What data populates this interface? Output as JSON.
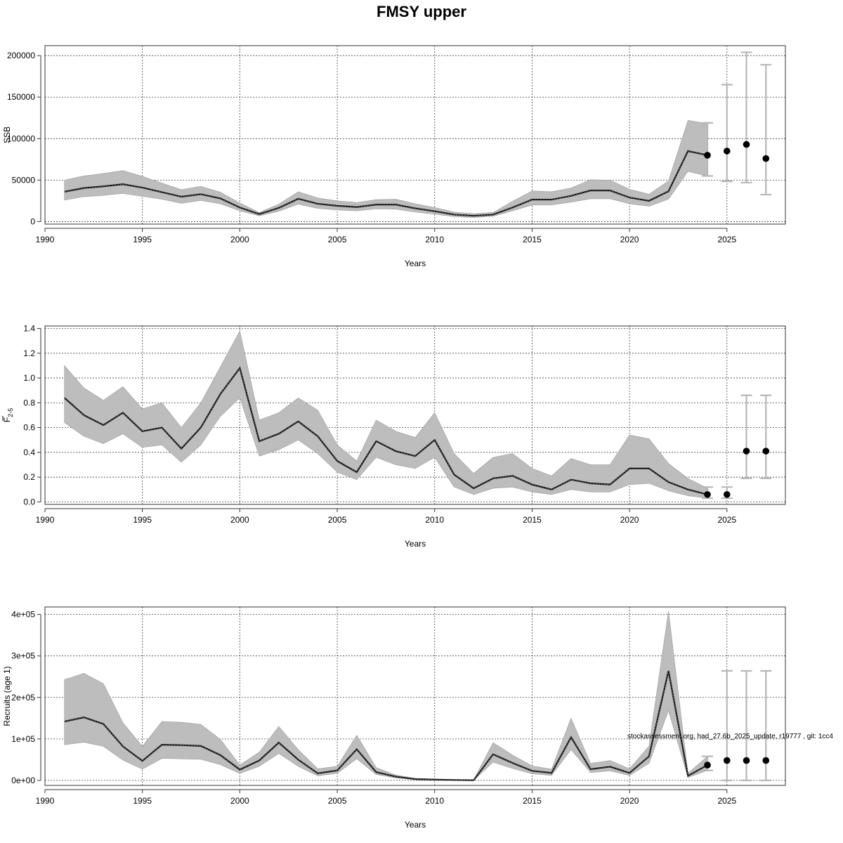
{
  "figure": {
    "title": "FMSY upper",
    "watermark": "stockassessment.org, had_27.6b_2025_update, r19777 , git: 1cc4"
  },
  "colors": {
    "band": "#bdbdbd",
    "line": "#111111",
    "errbar": "#b8b8b8",
    "point": "#000000"
  },
  "chart_data": [
    {
      "type": "line",
      "ylabel": "SSB",
      "xlabel": "Years",
      "xlim": [
        1990,
        2028
      ],
      "ylim": [
        -3000,
        212000
      ],
      "xticks": [
        1990,
        1995,
        2000,
        2005,
        2010,
        2015,
        2020,
        2025
      ],
      "yticks": [
        0,
        50000,
        100000,
        150000,
        200000
      ],
      "ytick_labels": [
        "0",
        "50000",
        "100000",
        "150000",
        "200000"
      ],
      "grid": true,
      "x": [
        1991,
        1992,
        1993,
        1994,
        1995,
        1996,
        1997,
        1998,
        1999,
        2000,
        2001,
        2002,
        2003,
        2004,
        2005,
        2006,
        2007,
        2008,
        2009,
        2010,
        2011,
        2012,
        2013,
        2014,
        2015,
        2016,
        2017,
        2018,
        2019,
        2020,
        2021,
        2022,
        2023,
        2024
      ],
      "series": [
        {
          "values": [
            36000,
            40500,
            42500,
            45000,
            41000,
            35500,
            30000,
            33000,
            28000,
            17000,
            9000,
            16500,
            27500,
            21500,
            19000,
            17500,
            20500,
            20500,
            16000,
            12500,
            8500,
            7000,
            8500,
            17000,
            26500,
            26500,
            31000,
            37500,
            37500,
            29000,
            25000,
            36500,
            85000,
            80000
          ],
          "lower": [
            26000,
            30000,
            31500,
            34000,
            30500,
            27000,
            22000,
            25500,
            21500,
            13000,
            7000,
            12500,
            21000,
            16000,
            14000,
            13000,
            15500,
            15000,
            11500,
            9000,
            6000,
            5000,
            6500,
            13000,
            20000,
            20000,
            23500,
            27500,
            27500,
            21500,
            18500,
            27000,
            60500,
            55000
          ],
          "upper": [
            50000,
            55000,
            58000,
            61500,
            54500,
            46500,
            38500,
            42500,
            35500,
            22500,
            11000,
            21000,
            36000,
            28500,
            25000,
            23000,
            26500,
            27000,
            21500,
            17000,
            11500,
            9500,
            11000,
            24500,
            37000,
            36000,
            40500,
            50500,
            50000,
            39000,
            33000,
            49000,
            122000,
            118000
          ]
        }
      ],
      "projection": [
        {
          "x": 2024,
          "value": 80000,
          "lower": 55000,
          "upper": 119000
        },
        {
          "x": 2025,
          "value": 85000,
          "lower": 48500,
          "upper": 165000
        },
        {
          "x": 2026,
          "value": 93000,
          "lower": 47000,
          "upper": 204000
        },
        {
          "x": 2027,
          "value": 76000,
          "lower": 32500,
          "upper": 189000
        }
      ]
    },
    {
      "type": "line",
      "ylabel": "F",
      "ylabel_sub": "2-5",
      "xlabel": "Years",
      "xlim": [
        1990,
        2028
      ],
      "ylim": [
        -0.02,
        1.42
      ],
      "xticks": [
        1990,
        1995,
        2000,
        2005,
        2010,
        2015,
        2020,
        2025
      ],
      "yticks": [
        0.0,
        0.2,
        0.4,
        0.6,
        0.8,
        1.0,
        1.2,
        1.4
      ],
      "ytick_labels": [
        "0.0",
        "0.2",
        "0.4",
        "0.6",
        "0.8",
        "1.0",
        "1.2",
        "1.4"
      ],
      "grid": true,
      "x": [
        1991,
        1992,
        1993,
        1994,
        1995,
        1996,
        1997,
        1998,
        1999,
        2000,
        2001,
        2002,
        2003,
        2004,
        2005,
        2006,
        2007,
        2008,
        2009,
        2010,
        2011,
        2012,
        2013,
        2014,
        2015,
        2016,
        2017,
        2018,
        2019,
        2020,
        2021,
        2022,
        2023,
        2024
      ],
      "series": [
        {
          "values": [
            0.84,
            0.7,
            0.62,
            0.72,
            0.57,
            0.6,
            0.43,
            0.6,
            0.87,
            1.08,
            0.49,
            0.55,
            0.65,
            0.53,
            0.33,
            0.24,
            0.49,
            0.41,
            0.37,
            0.5,
            0.22,
            0.11,
            0.19,
            0.21,
            0.14,
            0.1,
            0.18,
            0.15,
            0.14,
            0.27,
            0.27,
            0.16,
            0.1,
            0.06
          ],
          "lower": [
            0.64,
            0.53,
            0.47,
            0.55,
            0.44,
            0.46,
            0.32,
            0.46,
            0.69,
            0.84,
            0.37,
            0.42,
            0.5,
            0.39,
            0.24,
            0.18,
            0.36,
            0.3,
            0.27,
            0.36,
            0.12,
            0.06,
            0.11,
            0.12,
            0.08,
            0.06,
            0.1,
            0.08,
            0.08,
            0.14,
            0.15,
            0.09,
            0.05,
            0.03
          ],
          "upper": [
            1.1,
            0.92,
            0.82,
            0.93,
            0.75,
            0.8,
            0.6,
            0.8,
            1.09,
            1.38,
            0.66,
            0.72,
            0.84,
            0.74,
            0.46,
            0.33,
            0.66,
            0.57,
            0.52,
            0.72,
            0.39,
            0.23,
            0.36,
            0.39,
            0.27,
            0.21,
            0.35,
            0.3,
            0.3,
            0.54,
            0.51,
            0.31,
            0.19,
            0.11
          ]
        }
      ],
      "projection": [
        {
          "x": 2024,
          "value": 0.06,
          "lower": 0.03,
          "upper": 0.12
        },
        {
          "x": 2025,
          "value": 0.06,
          "lower": 0.03,
          "upper": 0.12
        },
        {
          "x": 2026,
          "value": 0.41,
          "lower": 0.19,
          "upper": 0.86
        },
        {
          "x": 2027,
          "value": 0.41,
          "lower": 0.19,
          "upper": 0.86
        }
      ]
    },
    {
      "type": "line",
      "ylabel": "Recruits (age 1)",
      "xlabel": "Years",
      "xlim": [
        1990,
        2028
      ],
      "ylim": [
        -12000,
        418000
      ],
      "xticks": [
        1990,
        1995,
        2000,
        2005,
        2010,
        2015,
        2020,
        2025
      ],
      "yticks": [
        0,
        100000,
        200000,
        300000,
        400000
      ],
      "ytick_labels": [
        "0e+00",
        "1e+05",
        "2e+05",
        "3e+05",
        "4e+05"
      ],
      "grid": true,
      "x": [
        1991,
        1992,
        1993,
        1994,
        1995,
        1996,
        1997,
        1998,
        1999,
        2000,
        2001,
        2002,
        2003,
        2004,
        2005,
        2006,
        2007,
        2008,
        2009,
        2010,
        2011,
        2012,
        2013,
        2014,
        2015,
        2016,
        2017,
        2018,
        2019,
        2020,
        2021,
        2022,
        2023,
        2024
      ],
      "series": [
        {
          "values": [
            142000,
            152000,
            136000,
            82000,
            47000,
            86000,
            85000,
            83000,
            61000,
            26000,
            48000,
            91000,
            50000,
            17000,
            24000,
            75000,
            20000,
            9000,
            3000,
            2000,
            1000,
            500,
            63000,
            42000,
            23000,
            18000,
            104000,
            27000,
            33000,
            18000,
            58000,
            264000,
            11000,
            37000
          ],
          "lower": [
            86000,
            92000,
            82000,
            49000,
            27000,
            53000,
            52000,
            51000,
            38000,
            17000,
            34000,
            65000,
            34000,
            11000,
            17000,
            52000,
            14000,
            6000,
            2000,
            1500,
            500,
            300,
            44000,
            29000,
            16000,
            12000,
            74000,
            19000,
            23000,
            12000,
            41000,
            168000,
            7000,
            24000
          ],
          "upper": [
            243000,
            258000,
            233000,
            139000,
            82000,
            142000,
            140000,
            135000,
            99000,
            37000,
            68000,
            130000,
            74000,
            28000,
            34000,
            109000,
            31000,
            13000,
            5000,
            3000,
            2000,
            1000,
            91000,
            61000,
            35000,
            27000,
            150000,
            41000,
            48000,
            28000,
            83000,
            408000,
            17000,
            58000
          ]
        }
      ],
      "projection": [
        {
          "x": 2024,
          "value": 37000,
          "lower": 24000,
          "upper": 58000
        },
        {
          "x": 2025,
          "value": 48000,
          "lower": 0,
          "upper": 264000
        },
        {
          "x": 2026,
          "value": 48000,
          "lower": 0,
          "upper": 264000
        },
        {
          "x": 2027,
          "value": 48000,
          "lower": 0,
          "upper": 264000
        }
      ]
    }
  ]
}
